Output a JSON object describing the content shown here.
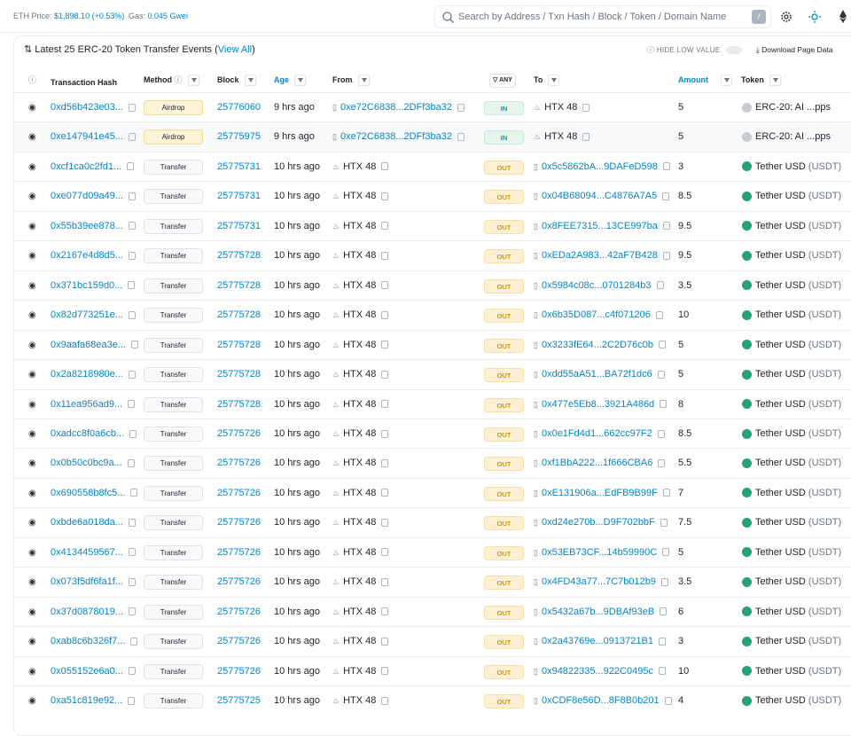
{
  "topbar": {
    "eth_price_label": "ETH Price:",
    "eth_price": "$1,898.10 (+0.53%)",
    "gas_label": "Gas:",
    "gas": "0.045 Gwei",
    "search_placeholder": "Search by Address / Txn Hash / Block / Token / Domain Name",
    "search_key": "/"
  },
  "card": {
    "title": "Latest 25 ERC-20 Token Transfer Events (",
    "view_all": "View All",
    "title_end": ")",
    "hide_low_value": "HIDE LOW VALUE",
    "download": "Download Page Data"
  },
  "table": {
    "columns": {
      "hash": "Transaction Hash",
      "method": "Method",
      "block": "Block",
      "age": "Age",
      "from": "From",
      "direction": "ANY",
      "to": "To",
      "amount": "Amount",
      "token": "Token"
    },
    "rows": [
      {
        "hash": "0xd56b423e03...",
        "method": "Airdrop",
        "block": "25776060",
        "age": "9 hrs ago",
        "from": "0xe72C6838...2DFf3ba32",
        "direction": "IN",
        "to": "HTX 48",
        "amount": 5,
        "token": "ERC-20: AI ...pps"
      },
      {
        "hash": "0xe147941e45...",
        "method": "Airdrop",
        "block": "25775975",
        "age": "9 hrs ago",
        "from": "0xe72C6838...2DFf3ba32",
        "direction": "IN",
        "to": "HTX 48",
        "amount": 5,
        "token": "ERC-20: AI ...pps"
      },
      {
        "hash": "0xcf1ca0c2fd1...",
        "method": "Transfer",
        "block": "25775731",
        "age": "10 hrs ago",
        "from": "HTX 48",
        "direction": "OUT",
        "to": "0x5c5862bA...9DAFeD598",
        "amount": 3,
        "token": "Tether USD",
        "token_symbol": "(USDT)"
      },
      {
        "hash": "0xe077d09a49...",
        "method": "Transfer",
        "block": "25775731",
        "age": "10 hrs ago",
        "from": "HTX 48",
        "direction": "OUT",
        "to": "0x04B68094...C4876A7A5",
        "amount": 8.5,
        "token": "Tether USD",
        "token_symbol": "(USDT)"
      },
      {
        "hash": "0x55b39ee878...",
        "method": "Transfer",
        "block": "25775731",
        "age": "10 hrs ago",
        "from": "HTX 48",
        "direction": "OUT",
        "to": "0x8FEE7315...13CE997ba",
        "amount": 9.5,
        "token": "Tether USD",
        "token_symbol": "(USDT)"
      },
      {
        "hash": "0x2167e4d8d5...",
        "method": "Transfer",
        "block": "25775728",
        "age": "10 hrs ago",
        "from": "HTX 48",
        "direction": "OUT",
        "to": "0xEDa2A983...42aF7B428",
        "amount": 9.5,
        "token": "Tether USD",
        "token_symbol": "(USDT)"
      },
      {
        "hash": "0x371bc159d0...",
        "method": "Transfer",
        "block": "25775728",
        "age": "10 hrs ago",
        "from": "HTX 48",
        "direction": "OUT",
        "to": "0x5984c08c...0701284b3",
        "amount": 3.5,
        "token": "Tether USD",
        "token_symbol": "(USDT)"
      },
      {
        "hash": "0x82d773251e...",
        "method": "Transfer",
        "block": "25775728",
        "age": "10 hrs ago",
        "from": "HTX 48",
        "direction": "OUT",
        "to": "0x6b35D087...c4f071206",
        "amount": 10,
        "token": "Tether USD",
        "token_symbol": "(USDT)"
      },
      {
        "hash": "0x9aafa68ea3e...",
        "method": "Transfer",
        "block": "25775728",
        "age": "10 hrs ago",
        "from": "HTX 48",
        "direction": "OUT",
        "to": "0x3233fE64...2C2D76c0b",
        "amount": 5,
        "token": "Tether USD",
        "token_symbol": "(USDT)"
      },
      {
        "hash": "0x2a8218980e...",
        "method": "Transfer",
        "block": "25775728",
        "age": "10 hrs ago",
        "from": "HTX 48",
        "direction": "OUT",
        "to": "0xdd55aA51...BA72f1dc6",
        "amount": 5,
        "token": "Tether USD",
        "token_symbol": "(USDT)"
      },
      {
        "hash": "0x11ea956ad9...",
        "method": "Transfer",
        "block": "25775728",
        "age": "10 hrs ago",
        "from": "HTX 48",
        "direction": "OUT",
        "to": "0x477e5Eb8...3921A486d",
        "amount": 8,
        "token": "Tether USD",
        "token_symbol": "(USDT)"
      },
      {
        "hash": "0xadcc8f0a6cb...",
        "method": "Transfer",
        "block": "25775726",
        "age": "10 hrs ago",
        "from": "HTX 48",
        "direction": "OUT",
        "to": "0x0e1Fd4d1...662cc97F2",
        "amount": 8.5,
        "token": "Tether USD",
        "token_symbol": "(USDT)"
      },
      {
        "hash": "0x0b50c0bc9a...",
        "method": "Transfer",
        "block": "25775726",
        "age": "10 hrs ago",
        "from": "HTX 48",
        "direction": "OUT",
        "to": "0xf1BbA222...1f666CBA6",
        "amount": 5.5,
        "token": "Tether USD",
        "token_symbol": "(USDT)"
      },
      {
        "hash": "0x690558b8fc5...",
        "method": "Transfer",
        "block": "25775726",
        "age": "10 hrs ago",
        "from": "HTX 48",
        "direction": "OUT",
        "to": "0xE131906a...EdFB9B99F",
        "amount": 7,
        "token": "Tether USD",
        "token_symbol": "(USDT)"
      },
      {
        "hash": "0xbde6a018da...",
        "method": "Transfer",
        "block": "25775726",
        "age": "10 hrs ago",
        "from": "HTX 48",
        "direction": "OUT",
        "to": "0xd24e270b...D9F702bbF",
        "amount": 7.5,
        "token": "Tether USD",
        "token_symbol": "(USDT)"
      },
      {
        "hash": "0x4134459567...",
        "method": "Transfer",
        "block": "25775726",
        "age": "10 hrs ago",
        "from": "HTX 48",
        "direction": "OUT",
        "to": "0x53EB73CF...14b59990C",
        "amount": 5,
        "token": "Tether USD",
        "token_symbol": "(USDT)"
      },
      {
        "hash": "0x073f5df6fa1f...",
        "method": "Transfer",
        "block": "25775726",
        "age": "10 hrs ago",
        "from": "HTX 48",
        "direction": "OUT",
        "to": "0x4FD43a77...7C7b012b9",
        "amount": 3.5,
        "token": "Tether USD",
        "token_symbol": "(USDT)"
      },
      {
        "hash": "0x37d0878019...",
        "method": "Transfer",
        "block": "25775726",
        "age": "10 hrs ago",
        "from": "HTX 48",
        "direction": "OUT",
        "to": "0x5432a67b...9DBAf93eB",
        "amount": 6,
        "token": "Tether USD",
        "token_symbol": "(USDT)"
      },
      {
        "hash": "0xab8c6b326f7...",
        "method": "Transfer",
        "block": "25775726",
        "age": "10 hrs ago",
        "from": "HTX 48",
        "direction": "OUT",
        "to": "0x2a43769e...0913721B1",
        "amount": 3,
        "token": "Tether USD",
        "token_symbol": "(USDT)"
      },
      {
        "hash": "0x055152e6a0...",
        "method": "Transfer",
        "block": "25775726",
        "age": "10 hrs ago",
        "from": "HTX 48",
        "direction": "OUT",
        "to": "0x94822335...922C0495c",
        "amount": 10,
        "token": "Tether USD",
        "token_symbol": "(USDT)"
      },
      {
        "hash": "0xa51c819e92...",
        "method": "Transfer",
        "block": "25775725",
        "age": "10 hrs ago",
        "from": "HTX 48",
        "direction": "OUT",
        "to": "0xCDF8e56D...8F8B0b201",
        "amount": 4,
        "token": "Tether USD",
        "token_symbol": "(USDT)"
      }
    ]
  }
}
